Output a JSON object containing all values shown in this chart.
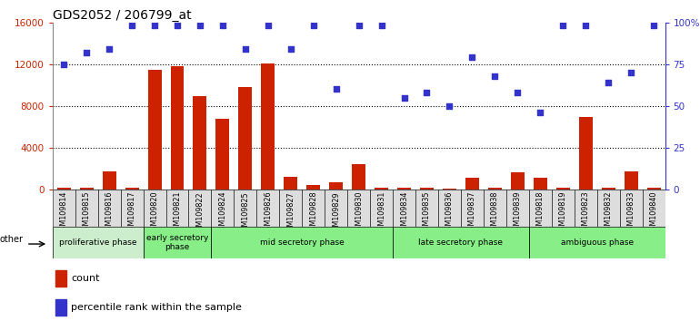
{
  "title": "GDS2052 / 206799_at",
  "samples": [
    "GSM109814",
    "GSM109815",
    "GSM109816",
    "GSM109817",
    "GSM109820",
    "GSM109821",
    "GSM109822",
    "GSM109824",
    "GSM109825",
    "GSM109826",
    "GSM109827",
    "GSM109828",
    "GSM109829",
    "GSM109830",
    "GSM109831",
    "GSM109834",
    "GSM109835",
    "GSM109836",
    "GSM109837",
    "GSM109838",
    "GSM109839",
    "GSM109818",
    "GSM109819",
    "GSM109823",
    "GSM109832",
    "GSM109833",
    "GSM109840"
  ],
  "counts": [
    180,
    130,
    1700,
    160,
    11500,
    11800,
    8900,
    6800,
    9800,
    12100,
    1200,
    380,
    720,
    2400,
    170,
    160,
    160,
    90,
    1100,
    160,
    1650,
    1150,
    180,
    6900,
    180,
    1700,
    180
  ],
  "percentiles": [
    75,
    82,
    84,
    98,
    98,
    98,
    98,
    98,
    84,
    98,
    84,
    98,
    60,
    98,
    98,
    55,
    58,
    50,
    79,
    68,
    58,
    46,
    98,
    98,
    64,
    70,
    98
  ],
  "ylim_left": [
    0,
    16000
  ],
  "ylim_right": [
    0,
    100
  ],
  "yticks_left": [
    0,
    4000,
    8000,
    12000,
    16000
  ],
  "yticks_right": [
    0,
    25,
    50,
    75,
    100
  ],
  "bar_color": "#cc2200",
  "dot_color": "#3333cc",
  "bg_color": "#ffffff",
  "phases": [
    {
      "label": "proliferative phase",
      "start": 0,
      "end": 4,
      "color": "#cceecc"
    },
    {
      "label": "early secretory\nphase",
      "start": 4,
      "end": 7,
      "color": "#88ee88"
    },
    {
      "label": "mid secretory phase",
      "start": 7,
      "end": 15,
      "color": "#88ee88"
    },
    {
      "label": "late secretory phase",
      "start": 15,
      "end": 21,
      "color": "#88ee88"
    },
    {
      "label": "ambiguous phase",
      "start": 21,
      "end": 27,
      "color": "#88ee88"
    }
  ],
  "other_label": "other",
  "legend_count_label": "count",
  "legend_pct_label": "percentile rank within the sample",
  "title_fontsize": 10,
  "tick_fontsize": 7.5
}
